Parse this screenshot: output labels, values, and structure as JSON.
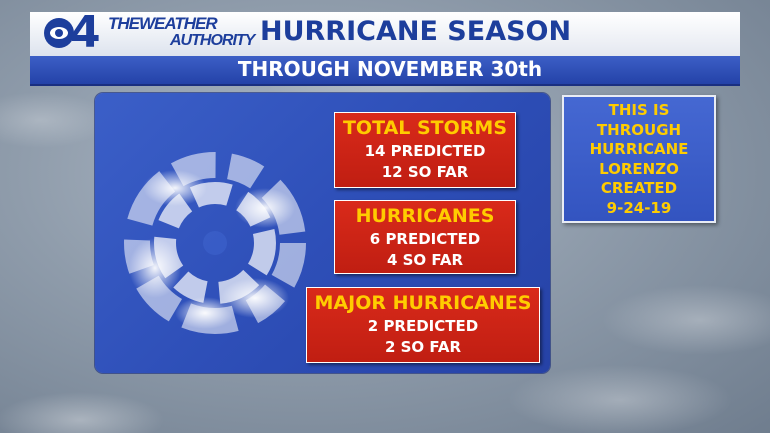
{
  "header": {
    "logo": {
      "channel_number": "4",
      "brand_top": "THEWEATHER",
      "brand_bottom": "AUTHORITY"
    },
    "title": "HURRICANE SEASON",
    "subtitle": "THROUGH NOVEMBER 30th"
  },
  "stats": [
    {
      "heading": "TOTAL STORMS",
      "predicted": "14 PREDICTED",
      "so_far": "12 SO FAR"
    },
    {
      "heading": "HURRICANES",
      "predicted": "6 PREDICTED",
      "so_far": "4 SO FAR"
    },
    {
      "heading": "MAJOR HURRICANES",
      "predicted": "2 PREDICTED",
      "so_far": "2 SO FAR"
    }
  ],
  "note": {
    "lines": [
      "THIS IS",
      "THROUGH",
      "HURRICANE",
      "LORENZO",
      "CREATED",
      "9-24-19"
    ]
  },
  "colors": {
    "brand_blue": "#1d3e9c",
    "panel_blue": "#2e4fb8",
    "stat_red": "#c01e12",
    "heading_yellow": "#ffcc00"
  },
  "icons": {
    "logo": "cbs-eye-icon",
    "storm": "hurricane-cloud-icon"
  }
}
